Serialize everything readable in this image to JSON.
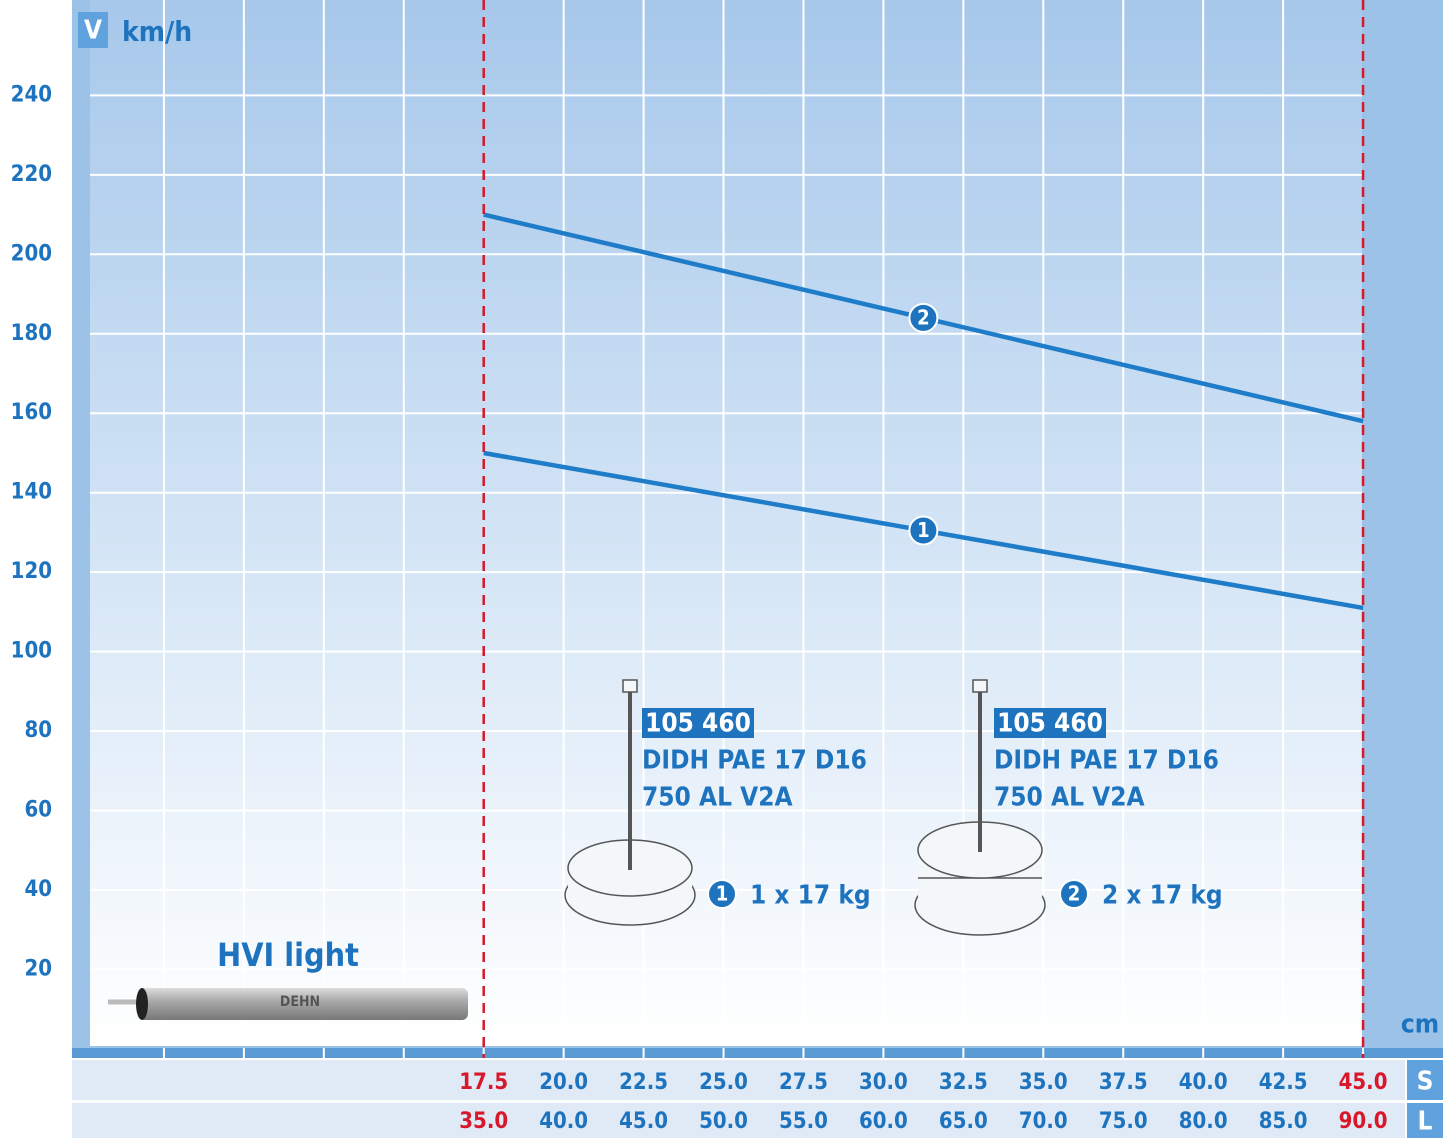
{
  "chart_data": {
    "type": "line",
    "y_symbol": "V",
    "y_label": "km/h",
    "x_label": "cm",
    "ylim": [
      0,
      264
    ],
    "yticks": [
      20,
      40,
      60,
      80,
      100,
      120,
      140,
      160,
      180,
      200,
      220,
      240
    ],
    "xlim": [
      5,
      47.5
    ],
    "xticks": [
      17.5,
      {
        "value": 20,
        "label": "20.0"
      },
      22.5,
      {
        "value": 25,
        "label": "25.0"
      },
      27.5,
      {
        "value": 30,
        "label": "30.0"
      },
      32.5,
      {
        "value": 35,
        "label": "35.0"
      },
      37.5,
      {
        "value": 40,
        "label": "40.0"
      },
      42.5,
      {
        "value": 45,
        "label": "45.0"
      }
    ],
    "x_grid_extra": [
      7.5,
      10,
      12.5,
      15
    ],
    "x_row_name": "S",
    "x2lim": [
      10,
      95
    ],
    "x2ticks": [
      {
        "value": 35,
        "label": "35.0"
      },
      {
        "value": 40,
        "label": "40.0"
      },
      {
        "value": 45,
        "label": "45.0"
      },
      {
        "value": 50,
        "label": "50.0"
      },
      {
        "value": 55,
        "label": "55.0"
      },
      {
        "value": 60,
        "label": "60.0"
      },
      {
        "value": 65,
        "label": "65.0"
      },
      {
        "value": 70,
        "label": "70.0"
      },
      {
        "value": 75,
        "label": "75.0"
      },
      {
        "value": 80,
        "label": "80.0"
      },
      {
        "value": 85,
        "label": "85.0"
      },
      {
        "value": 90,
        "label": "90.0"
      }
    ],
    "x2_row_name": "L",
    "limits": [
      17.5,
      45
    ],
    "limit_color": "#d7182a",
    "grid": true,
    "series": [
      {
        "name": "1",
        "color": "#1e7cc8",
        "x": [
          17.5,
          45
        ],
        "values": [
          150,
          111
        ]
      },
      {
        "name": "2",
        "color": "#1e7cc8",
        "x": [
          17.5,
          45
        ],
        "values": [
          210,
          158
        ]
      }
    ],
    "products": [
      {
        "code": "105 460",
        "lines": [
          "DIDH PAE 17 D16",
          "750 AL V2A"
        ],
        "weight": "1 x 17 kg"
      },
      {
        "code": "105 460",
        "lines": [
          "DIDH PAE 17 D16",
          "750 AL V2A"
        ],
        "weight": "2 x 17 kg"
      }
    ],
    "cable_label": "HVI light",
    "cable_brand": "DEHN"
  }
}
